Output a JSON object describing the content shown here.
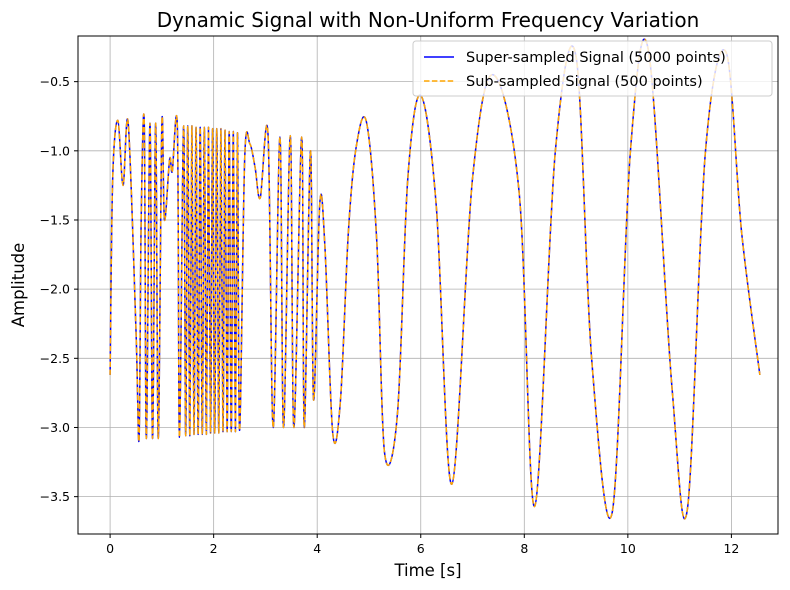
{
  "chart_data": {
    "type": "line",
    "title": "Dynamic Signal with Non-Uniform Frequency Variation",
    "xlabel": "Time [s]",
    "ylabel": "Amplitude",
    "xlim": [
      -0.62,
      12.9
    ],
    "ylim": [
      -3.77,
      -0.17
    ],
    "xticks": [
      0,
      2,
      4,
      6,
      8,
      10,
      12
    ],
    "xtick_labels": [
      "0",
      "2",
      "4",
      "6",
      "8",
      "10",
      "12"
    ],
    "yticks": [
      -3.5,
      -3.0,
      -2.5,
      -2.0,
      -1.5,
      -1.0,
      -0.5
    ],
    "ytick_labels": [
      "−3.5",
      "−3.0",
      "−2.5",
      "−2.0",
      "−1.5",
      "−1.0",
      "−0.5"
    ],
    "grid": true,
    "legend_position": "top-right",
    "series": [
      {
        "name": "Super-sampled Signal (5000 points)",
        "color": "#0000ff",
        "style": "solid"
      },
      {
        "name": "Sub-sampled Signal (500 points)",
        "color": "#ffa500",
        "style": "dashed"
      }
    ],
    "x": [
      0,
      0.05,
      0.15,
      0.25,
      0.35,
      0.5,
      0.56,
      0.6,
      0.66,
      0.7,
      0.77,
      0.82,
      0.88,
      0.93,
      1.0,
      1.05,
      1.15,
      1.2,
      1.3,
      1.34,
      1.42,
      1.46,
      1.5,
      1.54,
      1.58,
      1.62,
      1.66,
      1.7,
      1.74,
      1.78,
      1.82,
      1.86,
      1.9,
      1.94,
      1.98,
      2.02,
      2.06,
      2.1,
      2.14,
      2.18,
      2.22,
      2.26,
      2.3,
      2.34,
      2.38,
      2.42,
      2.46,
      2.5,
      2.6,
      2.7,
      2.8,
      2.9,
      3.05,
      3.15,
      3.28,
      3.35,
      3.48,
      3.55,
      3.7,
      3.75,
      3.87,
      3.93,
      4.05,
      4.15,
      4.3,
      4.45,
      4.6,
      4.75,
      4.95,
      5.15,
      5.3,
      5.55,
      5.75,
      6.0,
      6.3,
      6.6,
      7.0,
      7.4,
      7.9,
      8.2,
      8.6,
      9.0,
      9.3,
      9.7,
      10.05,
      10.4,
      10.85,
      11.15,
      11.5,
      11.9,
      12.2,
      12.55
    ],
    "values": [
      -2.62,
      -1.2,
      -0.78,
      -1.25,
      -0.8,
      -2.3,
      -3.08,
      -1.5,
      -0.8,
      -3.08,
      -0.8,
      -3.08,
      -0.8,
      -3.08,
      -0.8,
      -1.5,
      -1.06,
      -1.15,
      -0.84,
      -3.07,
      -0.82,
      -3.06,
      -0.82,
      -3.06,
      -0.82,
      -3.05,
      -0.83,
      -3.05,
      -0.83,
      -3.05,
      -0.83,
      -3.05,
      -0.83,
      -3.04,
      -0.84,
      -3.04,
      -0.84,
      -3.04,
      -0.84,
      -3.03,
      -0.85,
      -3.03,
      -0.86,
      -3.03,
      -0.86,
      -3.03,
      -0.87,
      -3.02,
      -1.05,
      -0.95,
      -1.12,
      -1.34,
      -0.88,
      -3.0,
      -0.9,
      -3.0,
      -0.89,
      -3.0,
      -0.9,
      -3.0,
      -1.0,
      -2.8,
      -1.38,
      -1.7,
      -3.04,
      -2.8,
      -1.6,
      -0.98,
      -0.79,
      -1.65,
      -3.18,
      -2.9,
      -1.2,
      -0.6,
      -1.4,
      -3.41,
      -1.2,
      -0.45,
      -1.3,
      -3.57,
      -1.0,
      -0.32,
      -2.5,
      -3.61,
      -1.0,
      -0.28,
      -2.7,
      -3.59,
      -1.0,
      -0.29,
      -1.6,
      -2.62
    ]
  }
}
